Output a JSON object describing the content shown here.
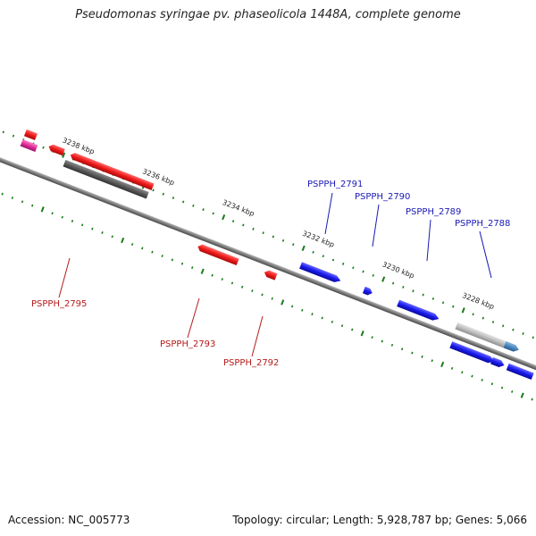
{
  "title": "Pseudomonas syringae pv. phaseolicola 1448A, complete genome",
  "footer": {
    "accession": "Accession: NC_005773",
    "summary": "Topology: circular; Length: 5,928,787 bp; Genes: 5,066"
  },
  "colors": {
    "backbone": "#7a7a7a",
    "tick": "#1a7a1a",
    "forward_gene": "#1a1aee",
    "reverse_gene": "#ee1a1a",
    "forward_label": "#1a1ab4",
    "reverse_label": "#b41a1a",
    "pseudo_dark": "#5a5a5a",
    "pseudo_light": "#bdbdbd",
    "misc_blue": "#4a86c0",
    "misc_pink": "#e0309a"
  },
  "scale_labels": [
    "3238 kbp",
    "3236 kbp",
    "3234 kbp",
    "3232 kbp",
    "3230 kbp",
    "3228 kbp"
  ],
  "forward_labels": [
    "PSPPH_2791",
    "PSPPH_2790",
    "PSPPH_2789",
    "PSPPH_2788"
  ],
  "reverse_labels": [
    "PSPPH_2795",
    "PSPPH_2793",
    "PSPPH_2792"
  ]
}
